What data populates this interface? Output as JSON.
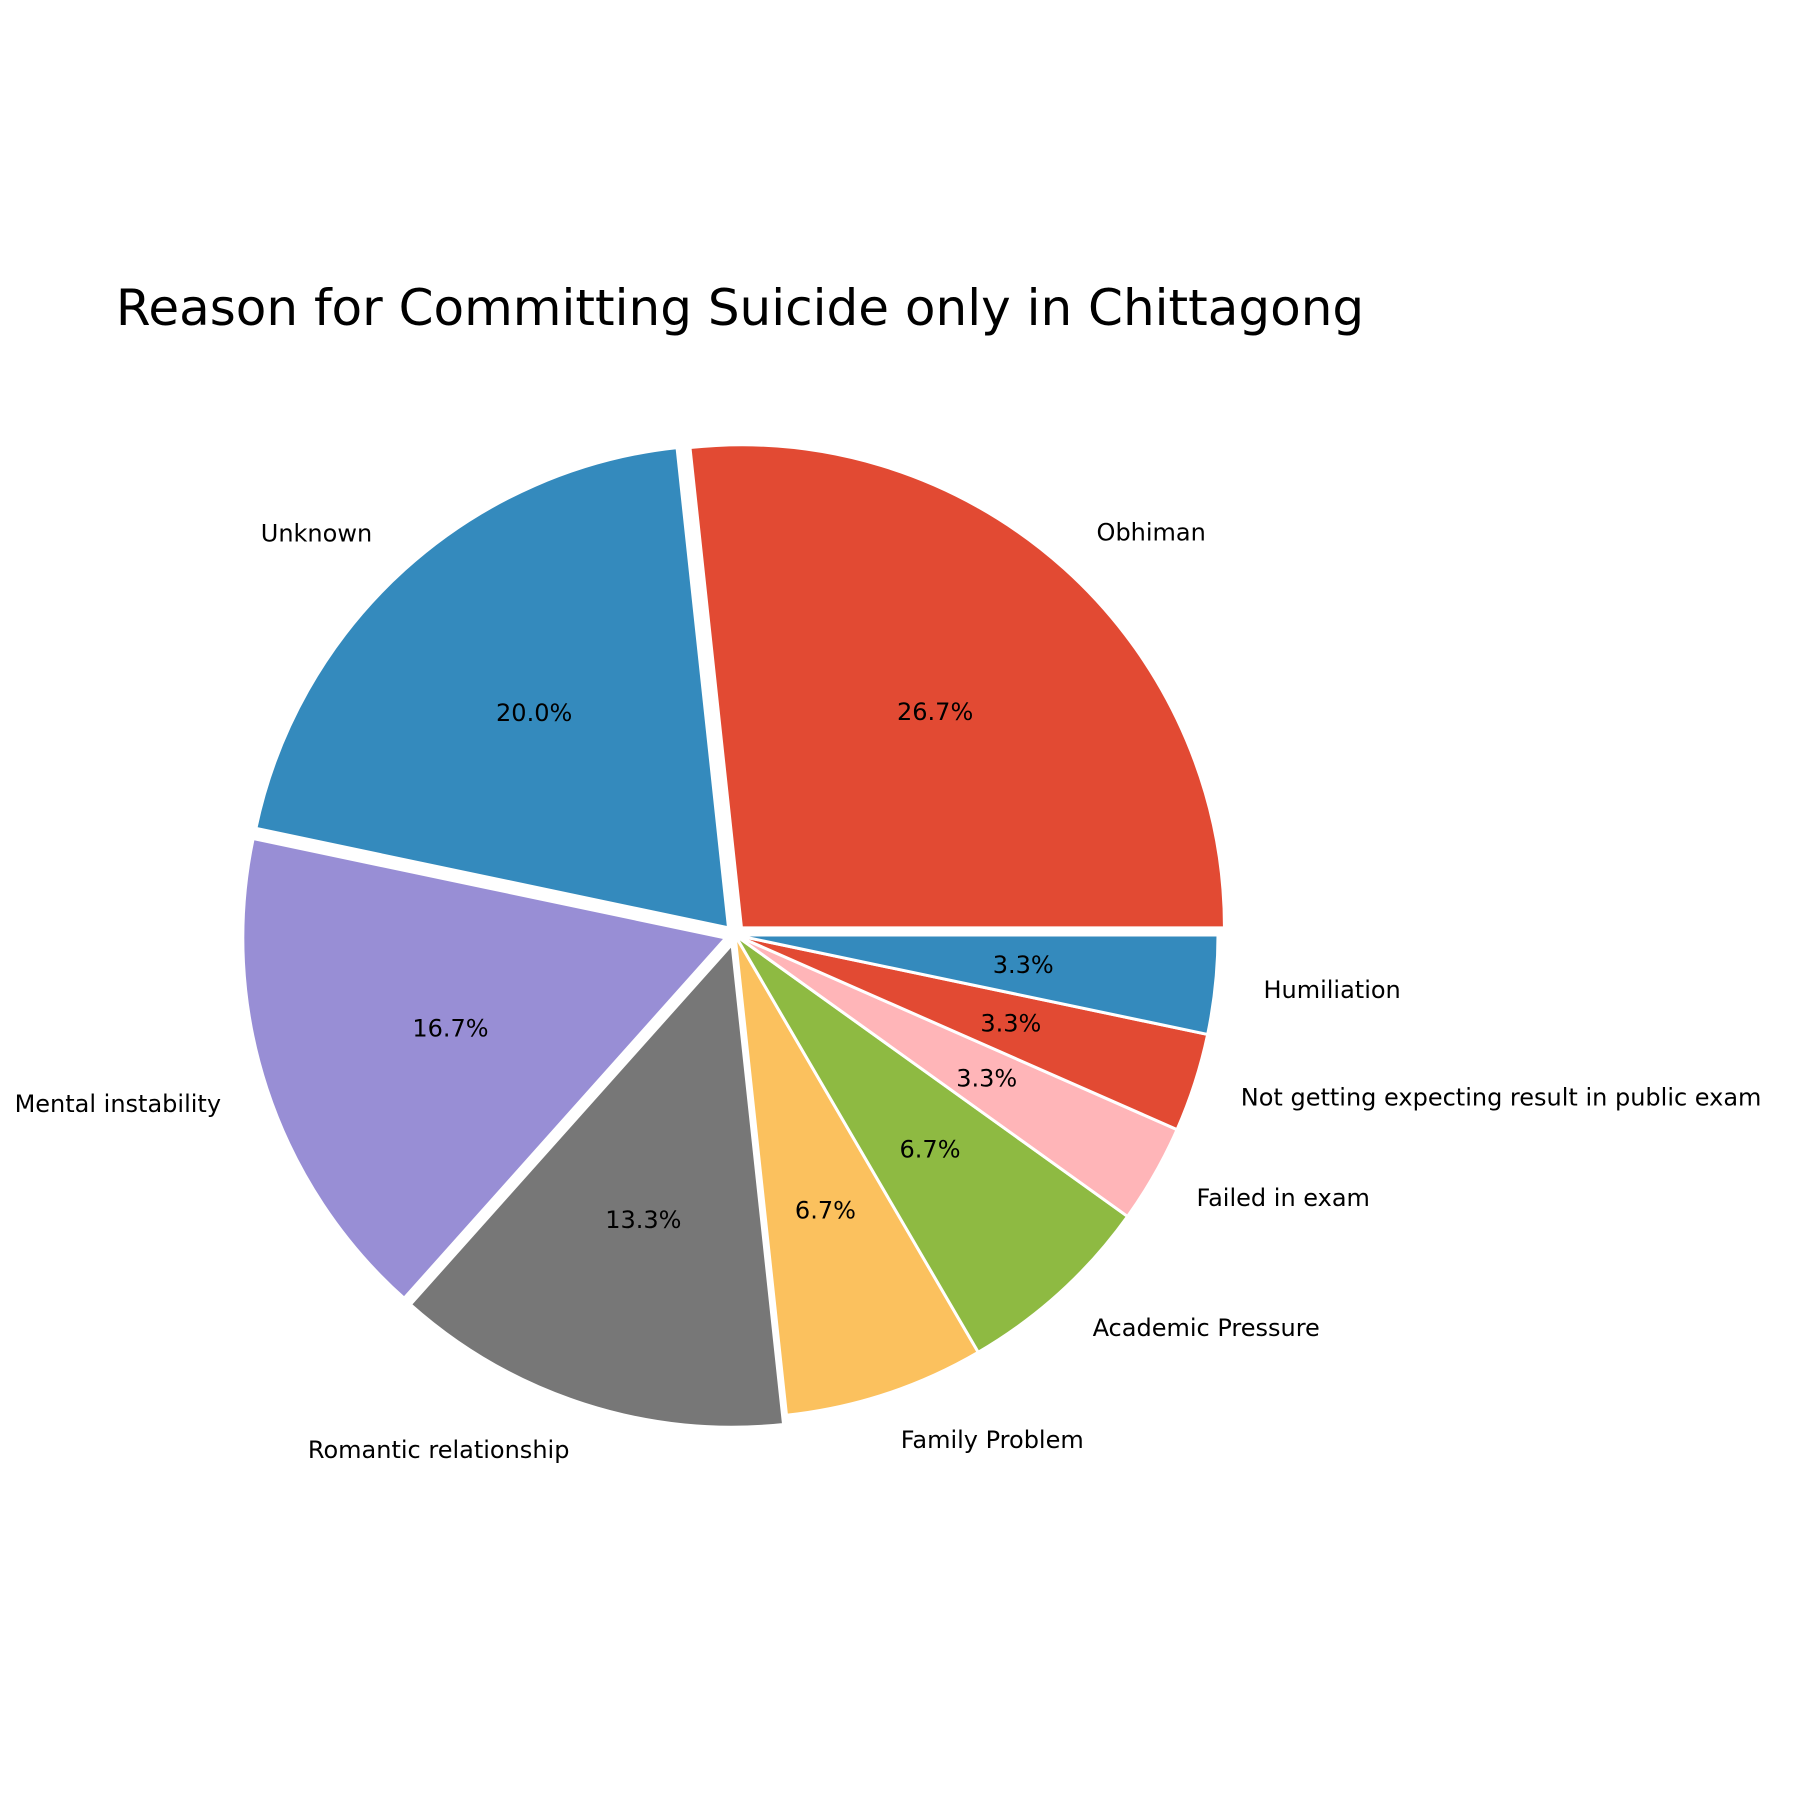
{
  "chart_data": {
    "type": "pie",
    "title": "Reason for Committing Suicide only in Chittagong",
    "slices": [
      {
        "label": "Obhiman",
        "value": 26.7,
        "pct_label": "26.7%",
        "color": "#E24A33",
        "explode": true
      },
      {
        "label": "Unknown",
        "value": 20.0,
        "pct_label": "20.0%",
        "color": "#348ABD",
        "explode": true
      },
      {
        "label": "Mental instability",
        "value": 16.7,
        "pct_label": "16.7%",
        "color": "#988ED5",
        "explode": true
      },
      {
        "label": "Romantic relationship",
        "value": 13.3,
        "pct_label": "13.3%",
        "color": "#777777",
        "explode": true
      },
      {
        "label": "Family Problem",
        "value": 6.7,
        "pct_label": "6.7%",
        "color": "#FBC15E",
        "explode": false
      },
      {
        "label": "Academic Pressure",
        "value": 6.7,
        "pct_label": "6.7%",
        "color": "#8EBA42",
        "explode": false
      },
      {
        "label": "Failed in exam",
        "value": 3.3,
        "pct_label": "3.3%",
        "color": "#FFB5B8",
        "explode": false
      },
      {
        "label": "Not getting expecting result in public exam",
        "value": 3.3,
        "pct_label": "3.3%",
        "color": "#E24A33",
        "explode": false
      },
      {
        "label": "Humiliation",
        "value": 3.3,
        "pct_label": "3.3%",
        "color": "#348ABD",
        "explode": false
      }
    ],
    "start_angle": 0,
    "direction": "counterclockwise"
  }
}
